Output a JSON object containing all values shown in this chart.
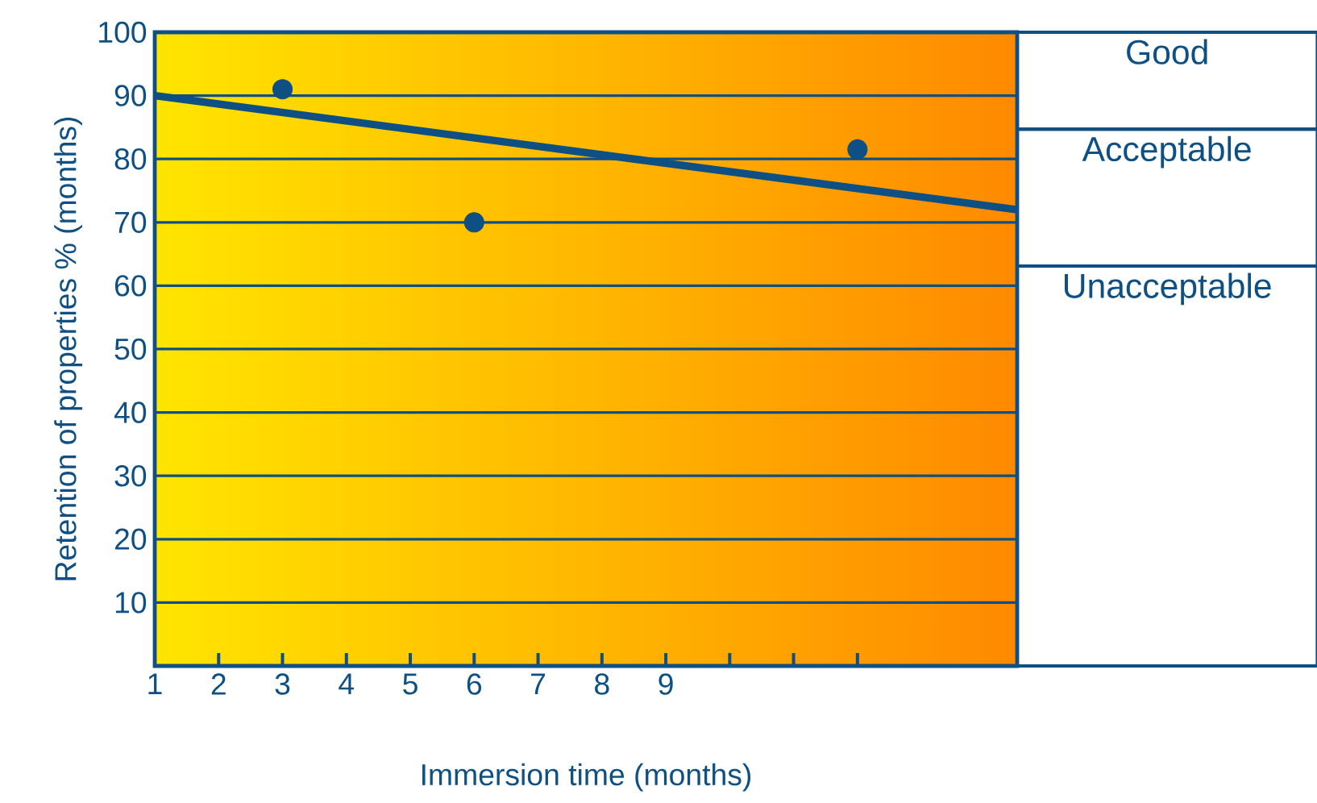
{
  "chart_data": {
    "type": "scatter",
    "xlabel": "Immersion time (months)",
    "ylabel": "Retention of properties % (months)",
    "xlim": [
      1,
      14.5
    ],
    "ylim": [
      0,
      100
    ],
    "xticks": [
      1,
      2,
      3,
      4,
      5,
      6,
      7,
      8,
      9,
      {
        "value": 10,
        "label": null
      },
      {
        "value": 11,
        "label": null
      },
      {
        "value": 12,
        "label": null
      }
    ],
    "yticks": [
      10,
      20,
      30,
      40,
      50,
      60,
      70,
      80,
      90,
      100
    ],
    "grid": "y",
    "series": [
      {
        "color": "#0e4f84",
        "marker": "circle",
        "x": [
          3,
          6,
          12
        ],
        "values": [
          91,
          70,
          81.5
        ]
      },
      {
        "type": "line",
        "color": "#0e4f84",
        "marker": "none",
        "line_style": "solid",
        "x": [
          1,
          14.5
        ],
        "values": [
          90,
          72
        ]
      }
    ],
    "annotations": [
      "Good",
      "Acceptable",
      "Unacceptable"
    ]
  }
}
